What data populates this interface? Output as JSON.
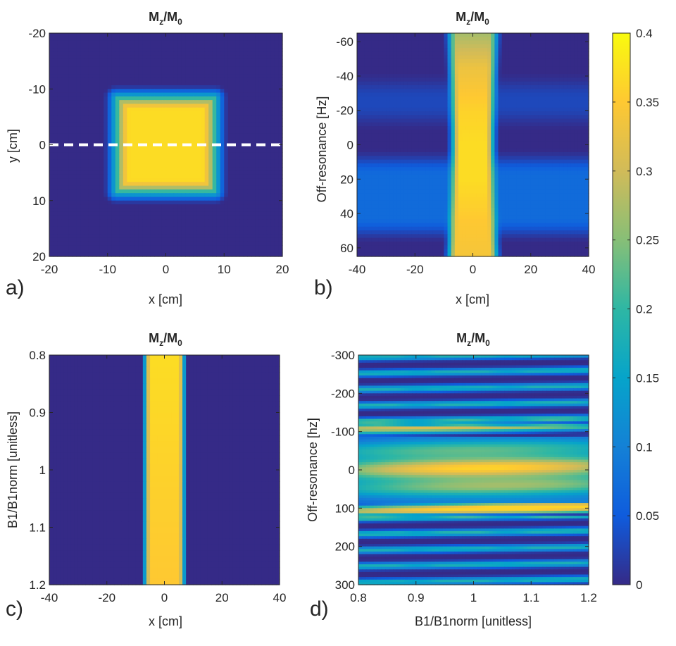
{
  "figure": {
    "colorbar": {
      "min": 0,
      "max": 0.4,
      "ticks": [
        "0",
        "0.05",
        "0.1",
        "0.15",
        "0.2",
        "0.25",
        "0.3",
        "0.35",
        "0.4"
      ],
      "colormap": "parula",
      "colors": [
        "#352a87",
        "#0f5cdd",
        "#1481d6",
        "#06a4ca",
        "#2eb7a4",
        "#87bf77",
        "#d1bb59",
        "#fec832",
        "#f9fb0e"
      ]
    },
    "dashed_line_color": "#ffffff"
  },
  "chart_data": [
    {
      "id": "a",
      "panel_label": "a)",
      "type": "heatmap",
      "title_main": "M",
      "title_sub1": "z",
      "title_mid": "/M",
      "title_sub2": "0",
      "xlabel": "x [cm]",
      "ylabel": "y [cm]",
      "xlim": [
        -20,
        20
      ],
      "ylim": [
        -20,
        20
      ],
      "y_reversed": true,
      "xticks": [
        -20,
        -10,
        0,
        10,
        20
      ],
      "yticks": [
        -20,
        -10,
        0,
        10,
        20
      ],
      "xtick_labels": [
        "-20",
        "-10",
        "0",
        "10",
        "20"
      ],
      "ytick_labels": [
        "-20",
        "-10",
        "0",
        "10",
        "20"
      ],
      "square_region": {
        "x": [
          -8.5,
          8.5
        ],
        "y": [
          -8.5,
          8.5
        ],
        "value": 0.37
      },
      "background_value": 0.0,
      "dashed_line_y": 0
    },
    {
      "id": "b",
      "panel_label": "b)",
      "type": "heatmap",
      "title_main": "M",
      "title_sub1": "z",
      "title_mid": "/M",
      "title_sub2": "0",
      "xlabel": "x [cm]",
      "ylabel": "Off-resonance [Hz]",
      "xlim": [
        -40,
        40
      ],
      "ylim": [
        -65,
        65
      ],
      "y_reversed": true,
      "xticks": [
        -40,
        -20,
        0,
        20,
        40
      ],
      "yticks": [
        -60,
        -40,
        -20,
        0,
        20,
        40,
        60
      ],
      "xtick_labels": [
        "-40",
        "-20",
        "0",
        "20",
        "40"
      ],
      "ytick_labels": [
        "-60",
        "-40",
        "-20",
        "0",
        "20",
        "40",
        "60"
      ],
      "slab_x": [
        -8,
        8
      ],
      "slab_profile": [
        {
          "off": -65,
          "value": 0.27
        },
        {
          "off": -45,
          "value": 0.33
        },
        {
          "off": -20,
          "value": 0.36
        },
        {
          "off": 0,
          "value": 0.37
        },
        {
          "off": 20,
          "value": 0.37
        },
        {
          "off": 45,
          "value": 0.35
        },
        {
          "off": 65,
          "value": 0.34
        }
      ],
      "background_bands": [
        {
          "off": [
            -35,
            -15
          ],
          "value": 0.03
        },
        {
          "off": [
            10,
            50
          ],
          "value": 0.07
        }
      ]
    },
    {
      "id": "c",
      "panel_label": "c)",
      "type": "heatmap",
      "title_main": "M",
      "title_sub1": "z",
      "title_mid": "/M",
      "title_sub2": "0",
      "xlabel": "x [cm]",
      "ylabel": "B1/B1norm [unitless]",
      "xlim": [
        -40,
        40
      ],
      "ylim": [
        0.8,
        1.2
      ],
      "y_reversed": true,
      "xticks": [
        -40,
        -20,
        0,
        20,
        40
      ],
      "yticks": [
        0.8,
        0.9,
        1.0,
        1.1,
        1.2
      ],
      "xtick_labels": [
        "-40",
        "-20",
        "0",
        "20",
        "40"
      ],
      "ytick_labels": [
        "0.8",
        "0.9",
        "1",
        "1.1",
        "1.2"
      ],
      "slab_x": [
        -8,
        8
      ],
      "slab_value": 0.37,
      "slab_edge_value": 0.15
    },
    {
      "id": "d",
      "panel_label": "d)",
      "type": "heatmap",
      "title_main": "M",
      "title_sub1": "z",
      "title_mid": "/M",
      "title_sub2": "0",
      "xlabel": "B1/B1norm [unitless]",
      "ylabel": "Off-resonance [hz]",
      "xlim": [
        0.8,
        1.2
      ],
      "ylim": [
        -300,
        300
      ],
      "y_reversed": true,
      "xticks": [
        0.8,
        0.9,
        1.0,
        1.1,
        1.2
      ],
      "yticks": [
        -300,
        -200,
        -100,
        0,
        100,
        200,
        300
      ],
      "xtick_labels": [
        "0.8",
        "0.9",
        "1",
        "1.1",
        "1.2"
      ],
      "ytick_labels": [
        "-300",
        "-200",
        "-100",
        "0",
        "100",
        "200",
        "300"
      ],
      "peak_offresonance": 0,
      "peak_value": 0.36
    }
  ]
}
